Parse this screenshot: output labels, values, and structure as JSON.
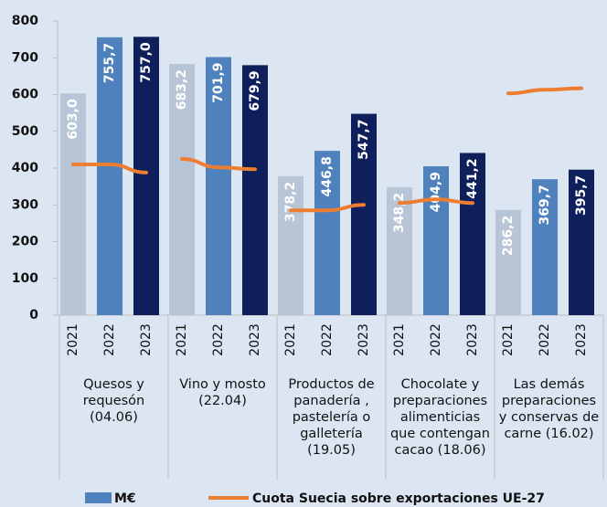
{
  "chart_data": {
    "type": "bar",
    "categories": [
      "Quesos y requesón (04.06)",
      "Vino y mosto (22.04)",
      "Productos de panadería , pastelería o galletería (19.05)",
      "Chocolate y preparaciones alimenticias que contengan cacao (18.06)",
      "Las demás preparaciones y conservas de carne (16.02)"
    ],
    "years": [
      "2021",
      "2022",
      "2023"
    ],
    "year_colors": [
      "#b8c5d6",
      "#4f81bd",
      "#0f1f5c"
    ],
    "series": [
      {
        "name": "M€",
        "color": "#4f81bd",
        "values": [
          [
            603.0,
            755.7,
            757.0
          ],
          [
            683.2,
            701.9,
            679.9
          ],
          [
            378.2,
            446.8,
            547.7
          ],
          [
            348.2,
            404.9,
            441.2
          ],
          [
            286.2,
            369.7,
            395.7
          ]
        ],
        "value_labels": [
          [
            "603,0",
            "755,7",
            "757,0"
          ],
          [
            "683,2",
            "701,9",
            "679,9"
          ],
          [
            "378,2",
            "446,8",
            "547,7"
          ],
          [
            "348,2",
            "404,9",
            "441,2"
          ],
          [
            "286,2",
            "369,7",
            "395,7"
          ]
        ]
      },
      {
        "name": "Cuota Suecia sobre exportaciones UE-27",
        "color": "#ed7d31",
        "type": "line",
        "values": [
          [
            410,
            410,
            388
          ],
          [
            425,
            402,
            397
          ],
          [
            285,
            285,
            300
          ],
          [
            305,
            315,
            305
          ],
          [
            603,
            613,
            617
          ]
        ]
      }
    ],
    "ylim": [
      0,
      800
    ],
    "yticks": [
      0,
      100,
      200,
      300,
      400,
      500,
      600,
      700,
      800
    ]
  }
}
